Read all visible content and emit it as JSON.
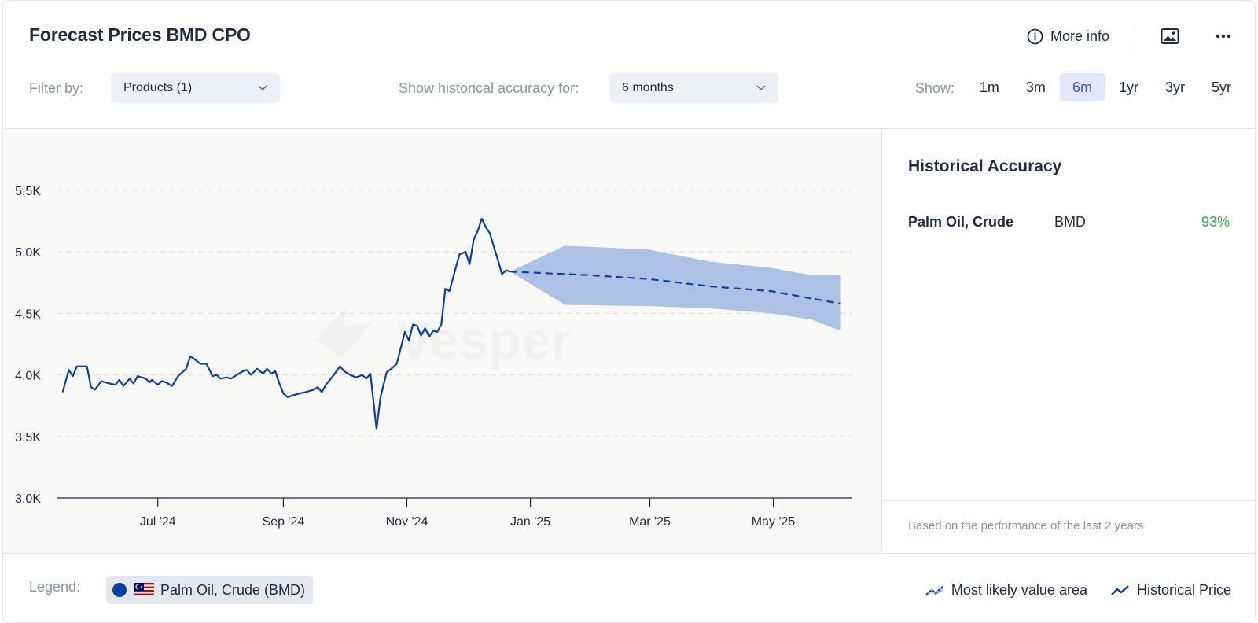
{
  "header": {
    "title": "Forecast Prices BMD CPO",
    "more_info_label": "More info",
    "icons": [
      "info-icon",
      "image-icon",
      "more-dots-icon"
    ]
  },
  "filters": {
    "filter_label": "Filter by:",
    "products_value": "Products (1)",
    "accuracy_label": "Show historical accuracy for:",
    "accuracy_value": "6 months",
    "show_label": "Show:",
    "ranges": [
      "1m",
      "3m",
      "6m",
      "1yr",
      "3yr",
      "5yr"
    ],
    "active_range": "6m"
  },
  "colors": {
    "series": "#0b3fa3",
    "band": "#a9bee3",
    "accent": "#3a55d6",
    "accuracy_good": "#2fb552"
  },
  "chart_data": {
    "type": "line",
    "y_ticks": [
      "3.0K",
      "3.5K",
      "4.0K",
      "4.5K",
      "5.0K",
      "5.5K"
    ],
    "ylim": [
      3000,
      5500
    ],
    "x_ticks": [
      "Jul '24",
      "Sep '24",
      "Nov '24",
      "Jan '25",
      "Mar '25",
      "May '25"
    ],
    "x_tick_dates": [
      "2024-07-01",
      "2024-09-01",
      "2024-11-01",
      "2025-01-01",
      "2025-03-01",
      "2025-05-01"
    ],
    "xlim": [
      "2024-05-12",
      "2025-06-09"
    ],
    "grid": true,
    "watermark": "Vesper",
    "series": [
      {
        "name": "Historical Price",
        "style": "solid",
        "points": [
          [
            "2024-05-15",
            3860
          ],
          [
            "2024-05-18",
            4040
          ],
          [
            "2024-05-20",
            3990
          ],
          [
            "2024-05-22",
            4070
          ],
          [
            "2024-05-27",
            4070
          ],
          [
            "2024-05-29",
            3900
          ],
          [
            "2024-05-31",
            3880
          ],
          [
            "2024-06-03",
            3950
          ],
          [
            "2024-06-07",
            3930
          ],
          [
            "2024-06-10",
            3920
          ],
          [
            "2024-06-12",
            3960
          ],
          [
            "2024-06-14",
            3910
          ],
          [
            "2024-06-17",
            3970
          ],
          [
            "2024-06-19",
            3930
          ],
          [
            "2024-06-21",
            3990
          ],
          [
            "2024-06-25",
            3970
          ],
          [
            "2024-06-27",
            3940
          ],
          [
            "2024-06-28",
            3960
          ],
          [
            "2024-07-01",
            3920
          ],
          [
            "2024-07-03",
            3950
          ],
          [
            "2024-07-05",
            3940
          ],
          [
            "2024-07-08",
            3910
          ],
          [
            "2024-07-11",
            3990
          ],
          [
            "2024-07-15",
            4050
          ],
          [
            "2024-07-17",
            4150
          ],
          [
            "2024-07-19",
            4130
          ],
          [
            "2024-07-22",
            4090
          ],
          [
            "2024-07-25",
            4090
          ],
          [
            "2024-07-28",
            3990
          ],
          [
            "2024-07-30",
            4000
          ],
          [
            "2024-08-01",
            3970
          ],
          [
            "2024-08-04",
            3980
          ],
          [
            "2024-08-06",
            3970
          ],
          [
            "2024-08-09",
            4000
          ],
          [
            "2024-08-12",
            4030
          ],
          [
            "2024-08-14",
            4040
          ],
          [
            "2024-08-16",
            4000
          ],
          [
            "2024-08-19",
            4050
          ],
          [
            "2024-08-22",
            4010
          ],
          [
            "2024-08-24",
            4050
          ],
          [
            "2024-08-26",
            4010
          ],
          [
            "2024-08-28",
            4030
          ],
          [
            "2024-08-30",
            3930
          ],
          [
            "2024-09-01",
            3850
          ],
          [
            "2024-09-03",
            3820
          ],
          [
            "2024-09-05",
            3830
          ],
          [
            "2024-09-09",
            3850
          ],
          [
            "2024-09-12",
            3860
          ],
          [
            "2024-09-16",
            3880
          ],
          [
            "2024-09-18",
            3900
          ],
          [
            "2024-09-20",
            3860
          ],
          [
            "2024-09-22",
            3920
          ],
          [
            "2024-09-25",
            3980
          ],
          [
            "2024-09-29",
            4070
          ],
          [
            "2024-10-01",
            4030
          ],
          [
            "2024-10-04",
            4000
          ],
          [
            "2024-10-07",
            3980
          ],
          [
            "2024-10-10",
            4000
          ],
          [
            "2024-10-12",
            3970
          ],
          [
            "2024-10-14",
            4010
          ],
          [
            "2024-10-17",
            3560
          ],
          [
            "2024-10-19",
            3820
          ],
          [
            "2024-10-22",
            4020
          ],
          [
            "2024-10-25",
            4060
          ],
          [
            "2024-10-27",
            4090
          ],
          [
            "2024-10-29",
            4220
          ],
          [
            "2024-10-31",
            4350
          ],
          [
            "2024-11-02",
            4280
          ],
          [
            "2024-11-04",
            4410
          ],
          [
            "2024-11-06",
            4400
          ],
          [
            "2024-11-08",
            4320
          ],
          [
            "2024-11-10",
            4380
          ],
          [
            "2024-11-12",
            4310
          ],
          [
            "2024-11-14",
            4360
          ],
          [
            "2024-11-16",
            4350
          ],
          [
            "2024-11-18",
            4410
          ],
          [
            "2024-11-20",
            4700
          ],
          [
            "2024-11-22",
            4680
          ],
          [
            "2024-11-24",
            4800
          ],
          [
            "2024-11-27",
            4980
          ],
          [
            "2024-11-30",
            5000
          ],
          [
            "2024-12-02",
            4900
          ],
          [
            "2024-12-04",
            5100
          ],
          [
            "2024-12-06",
            5170
          ],
          [
            "2024-12-08",
            5270
          ],
          [
            "2024-12-10",
            5200
          ],
          [
            "2024-12-12",
            5150
          ],
          [
            "2024-12-14",
            5040
          ],
          [
            "2024-12-16",
            4930
          ],
          [
            "2024-12-18",
            4820
          ],
          [
            "2024-12-20",
            4850
          ],
          [
            "2024-12-22",
            4840
          ]
        ]
      },
      {
        "name": "Most likely value area",
        "style": "dashed",
        "points": [
          [
            "2024-12-22",
            4840
          ],
          [
            "2025-01-31",
            4810
          ],
          [
            "2025-02-28",
            4780
          ],
          [
            "2025-03-31",
            4720
          ],
          [
            "2025-04-30",
            4680
          ],
          [
            "2025-06-03",
            4580
          ]
        ],
        "band_upper": [
          [
            "2024-12-22",
            4840
          ],
          [
            "2025-01-18",
            5050
          ],
          [
            "2025-02-28",
            5020
          ],
          [
            "2025-03-31",
            4920
          ],
          [
            "2025-04-30",
            4870
          ],
          [
            "2025-05-20",
            4810
          ],
          [
            "2025-06-03",
            4810
          ]
        ],
        "band_lower": [
          [
            "2024-12-22",
            4840
          ],
          [
            "2025-01-18",
            4570
          ],
          [
            "2025-02-28",
            4560
          ],
          [
            "2025-03-31",
            4540
          ],
          [
            "2025-04-30",
            4500
          ],
          [
            "2025-05-20",
            4450
          ],
          [
            "2025-06-03",
            4360
          ]
        ]
      }
    ]
  },
  "accuracy_panel": {
    "title": "Historical Accuracy",
    "rows": [
      {
        "product": "Palm Oil, Crude",
        "exchange": "BMD",
        "value": "93%"
      }
    ],
    "note": "Based on the performance of the last 2 years"
  },
  "legend": {
    "label": "Legend:",
    "chip_label": "Palm Oil, Crude (BMD)",
    "chip_flag": "malaysia-flag-icon",
    "forecast_label": "Most likely value area",
    "history_label": "Historical Price"
  }
}
